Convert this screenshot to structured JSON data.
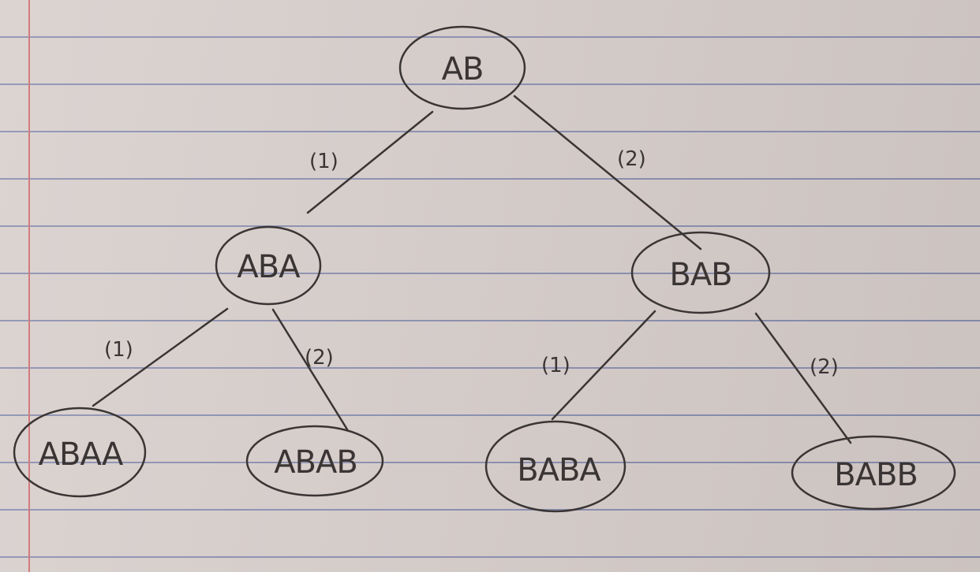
{
  "tree": {
    "root": {
      "label": "AB"
    },
    "level1": [
      {
        "label": "ABA",
        "edge_label": "(1)"
      },
      {
        "label": "BAB",
        "edge_label": "(2)"
      }
    ],
    "level2": [
      {
        "label": "ABAA",
        "edge_label": "(1)"
      },
      {
        "label": "ABAB",
        "edge_label": "(2)"
      },
      {
        "label": "BABA",
        "edge_label": "(1)"
      },
      {
        "label": "BABB",
        "edge_label": "(2)"
      }
    ]
  },
  "colors": {
    "ink": "#3a3534",
    "paper": "#d8cfcc",
    "rule_line": "#8a8fb0",
    "margin_line": "#d47a7d"
  }
}
